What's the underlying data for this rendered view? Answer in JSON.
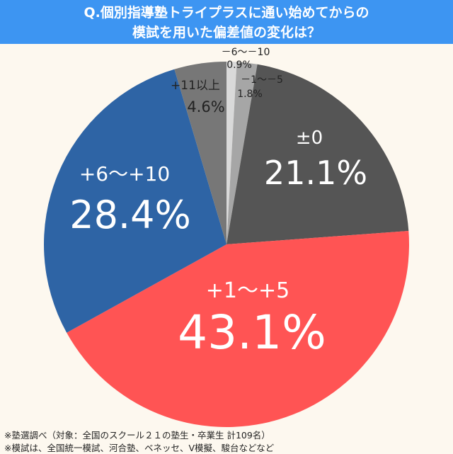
{
  "title_line1": "Q.個別指導塾トライプラスに通い始めてからの",
  "title_line2": "模試を用いた偏差値の変化は？",
  "chart_data": {
    "type": "pie",
    "start": "12 o'clock, clockwise",
    "categories": [
      "－6〜－10",
      "－1〜－5",
      "±0",
      "+1〜+5",
      "+6〜+10",
      "+11以上"
    ],
    "values": [
      0.9,
      1.8,
      21.1,
      43.1,
      28.4,
      4.6
    ],
    "labels": [
      "0.9%",
      "1.8%",
      "21.1%",
      "43.1%",
      "28.4%",
      "4.6%"
    ],
    "colors": [
      "#d9d9d9",
      "#a6a6a6",
      "#555555",
      "#ff5454",
      "#2e64a5",
      "#777777"
    ]
  },
  "footnotes": [
    "※塾選調べ（対象：全国のスクール２１の塾生・卒業生 計109名）",
    "※模試は、全国統一模試、河合塾、ベネッセ、V模擬、駿台などなど"
  ]
}
